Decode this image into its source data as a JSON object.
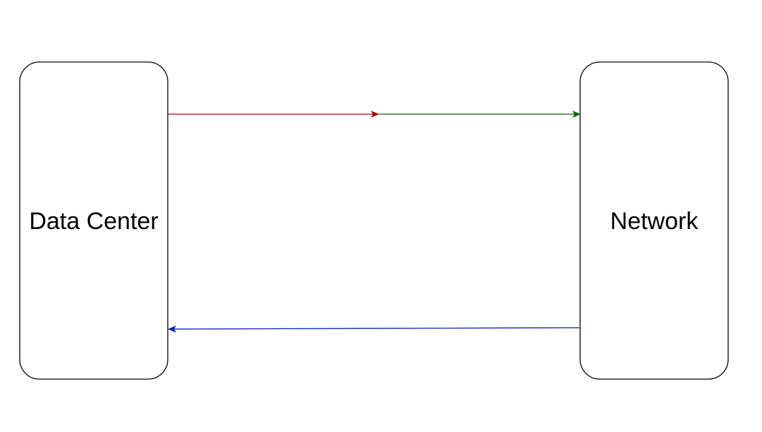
{
  "diagram": {
    "nodes": {
      "data_center": {
        "label": "Data Center"
      },
      "network": {
        "label": "Network"
      }
    },
    "edges": [
      {
        "id": "edge-1",
        "from": "data_center",
        "to": "midpoint",
        "color": "#aa0000"
      },
      {
        "id": "edge-2",
        "from": "midpoint",
        "to": "network",
        "color": "#006600"
      },
      {
        "id": "edge-3",
        "from": "network",
        "to": "data_center",
        "color": "#0022bb"
      }
    ]
  }
}
